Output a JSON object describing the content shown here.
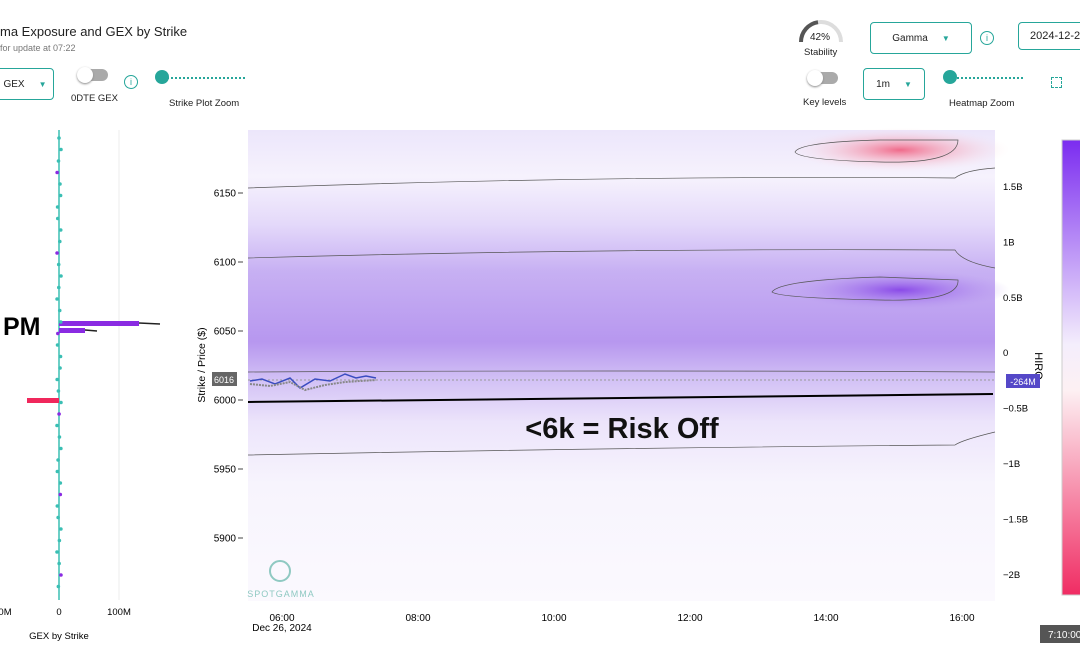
{
  "header": {
    "title": "ma Exposure and GEX by Strike",
    "subtitle": "for update at 07:22"
  },
  "controls": {
    "gex_select": "GEX",
    "dte_toggle": "0DTE GEX",
    "strike_zoom": "Strike Plot Zoom",
    "stability_value": "42%",
    "stability_label": "Stability",
    "metric_select": "Gamma",
    "date": "2024-12-2",
    "key_levels": "Key levels",
    "interval_select": "1m",
    "heatmap_zoom": "Heatmap Zoom"
  },
  "strike_chart": {
    "annotation": "PM",
    "x_tick_labels": [
      "0M",
      "0",
      "100M"
    ],
    "x_label": "GEX by Strike"
  },
  "heatmap": {
    "y_label": "Strike / Price ($)",
    "y_tick_labels": [
      "6150",
      "6100",
      "6050",
      "6000",
      "5950",
      "5900"
    ],
    "x_tick_labels": [
      "06:00",
      "08:00",
      "10:00",
      "12:00",
      "14:00",
      "16:00"
    ],
    "x_date": "Dec 26, 2024",
    "price_label": "6016",
    "annotation": "<6k = Risk Off",
    "watermark": "SPOTGAMMA"
  },
  "hiro": {
    "axis_label": "HIRO",
    "tick_labels": [
      "1.5B",
      "1B",
      "0.5B",
      "0",
      "−0.5B",
      "−1B",
      "−1.5B",
      "−2B"
    ],
    "marker": "-264M",
    "time": "7:10:00"
  }
}
